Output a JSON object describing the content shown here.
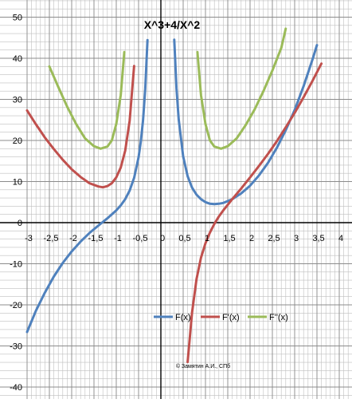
{
  "chart_data": {
    "type": "line",
    "title": "X^3+4/X^2",
    "xlabel": "",
    "ylabel": "",
    "xlim": [
      -3,
      4.25
    ],
    "ylim": [
      -42,
      50
    ],
    "x_ticks": [
      -3,
      -2.5,
      -2,
      -1.5,
      -1,
      -0.5,
      0,
      0.5,
      1,
      1.5,
      2,
      2.5,
      3,
      3.5,
      4
    ],
    "x_tick_labels": [
      "-3",
      "-2,5",
      "-2",
      "-1,5",
      "-1",
      "-0,5",
      "0",
      "0,5",
      "1",
      "1,5",
      "2",
      "2,5",
      "3",
      "3,5",
      "4"
    ],
    "y_ticks": [
      -40,
      -30,
      -20,
      -10,
      0,
      10,
      20,
      30,
      40,
      50
    ],
    "y_tick_labels": [
      "-40",
      "-30",
      "-20",
      "-10",
      "0",
      "10",
      "20",
      "30",
      "40",
      "50"
    ],
    "grid": true,
    "legend_position": "lower-right",
    "watermark": "© Замятин А.И., СПб",
    "series": [
      {
        "name": "F(x)",
        "color": "#4f81bd",
        "segments": [
          [
            [
              -3,
              -26.6
            ],
            [
              -2.8,
              -21.4
            ],
            [
              -2.6,
              -17
            ],
            [
              -2.4,
              -13.1
            ],
            [
              -2.2,
              -9.8
            ],
            [
              -2,
              -7
            ],
            [
              -1.8,
              -4.6
            ],
            [
              -1.6,
              -2.5
            ],
            [
              -1.4,
              -0.7
            ],
            [
              -1.2,
              1.05
            ],
            [
              -1,
              3
            ],
            [
              -0.9,
              4.2
            ],
            [
              -0.8,
              5.7
            ],
            [
              -0.7,
              7.8
            ],
            [
              -0.6,
              10.9
            ],
            [
              -0.5,
              15.9
            ],
            [
              -0.45,
              19.7
            ],
            [
              -0.4,
              24.9
            ],
            [
              -0.35,
              32.6
            ],
            [
              -0.3,
              44.4
            ]
          ],
          [
            [
              0.3,
              44.5
            ],
            [
              0.35,
              32.7
            ],
            [
              0.4,
              25.1
            ],
            [
              0.5,
              16.1
            ],
            [
              0.6,
              11.3
            ],
            [
              0.7,
              8.5
            ],
            [
              0.8,
              6.8
            ],
            [
              0.9,
              5.7
            ],
            [
              1,
              5
            ],
            [
              1.1,
              4.6
            ],
            [
              1.2,
              4.5
            ],
            [
              1.3,
              4.6
            ],
            [
              1.4,
              4.8
            ],
            [
              1.6,
              5.7
            ],
            [
              1.8,
              7.1
            ],
            [
              2,
              9
            ],
            [
              2.2,
              11.5
            ],
            [
              2.4,
              14.5
            ],
            [
              2.6,
              18.2
            ],
            [
              2.8,
              22.5
            ],
            [
              3,
              27.4
            ],
            [
              3.2,
              33.2
            ],
            [
              3.4,
              39.7
            ],
            [
              3.5,
              43.2
            ]
          ]
        ]
      },
      {
        "name": "F'(x)",
        "color": "#c0504d",
        "segments": [
          [
            [
              -3,
              27.3
            ],
            [
              -2.8,
              23.9
            ],
            [
              -2.6,
              20.7
            ],
            [
              -2.4,
              17.9
            ],
            [
              -2.2,
              15.3
            ],
            [
              -2,
              13
            ],
            [
              -1.8,
              11.1
            ],
            [
              -1.6,
              9.6
            ],
            [
              -1.4,
              8.8
            ],
            [
              -1.3,
              8.6
            ],
            [
              -1.2,
              8.9
            ],
            [
              -1.1,
              9.6
            ],
            [
              -1,
              11
            ],
            [
              -0.9,
              13.4
            ],
            [
              -0.8,
              17.5
            ],
            [
              -0.7,
              24.8
            ],
            [
              -0.6,
              38.1
            ]
          ],
          [
            [
              0.6,
              -33.9
            ],
            [
              0.7,
              -21.8
            ],
            [
              0.8,
              -13.7
            ],
            [
              0.9,
              -8.5
            ],
            [
              1,
              -5
            ],
            [
              1.1,
              -2.4
            ],
            [
              1.2,
              -0.3
            ],
            [
              1.3,
              1.5
            ],
            [
              1.4,
              3
            ],
            [
              1.6,
              5.7
            ],
            [
              1.8,
              8.3
            ],
            [
              2,
              11
            ],
            [
              2.2,
              13.8
            ],
            [
              2.4,
              16.7
            ],
            [
              2.6,
              19.8
            ],
            [
              2.8,
              23.2
            ],
            [
              3,
              26.7
            ],
            [
              3.2,
              30.5
            ],
            [
              3.4,
              34.5
            ],
            [
              3.6,
              38.7
            ]
          ]
        ]
      },
      {
        "name": "F''(x)",
        "color": "#9bbb59",
        "segments": [
          [
            [
              -2.5,
              38
            ],
            [
              -2.3,
              33
            ],
            [
              -2.1,
              28.2
            ],
            [
              -1.9,
              24
            ],
            [
              -1.7,
              20.5
            ],
            [
              -1.5,
              18.6
            ],
            [
              -1.35,
              18
            ],
            [
              -1.2,
              18.5
            ],
            [
              -1.1,
              20
            ],
            [
              -1,
              24
            ],
            [
              -0.9,
              31
            ],
            [
              -0.82,
              41.5
            ]
          ],
          [
            [
              0.82,
              41.5
            ],
            [
              0.9,
              31
            ],
            [
              1,
              24
            ],
            [
              1.1,
              20
            ],
            [
              1.2,
              18.5
            ],
            [
              1.35,
              18
            ],
            [
              1.5,
              18.6
            ],
            [
              1.7,
              20.5
            ],
            [
              1.9,
              23.7
            ],
            [
              2.1,
              27.5
            ],
            [
              2.3,
              32
            ],
            [
              2.5,
              37
            ],
            [
              2.7,
              42.5
            ],
            [
              2.8,
              47.2
            ]
          ]
        ]
      }
    ]
  }
}
